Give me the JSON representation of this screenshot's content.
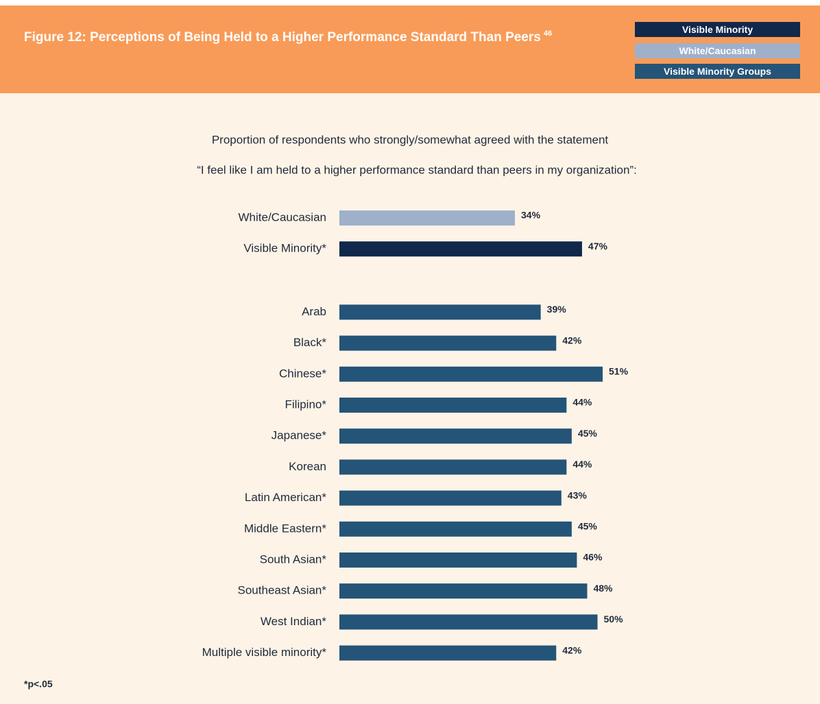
{
  "chart_data": {
    "type": "barh",
    "title": "Figure 12:  Perceptions of Being Held to a Higher Performance Standard Than Peers",
    "title_note": "46",
    "subtitle": [
      "Proportion of respondents who strongly/somewhat agreed with the statement",
      "“I feel like I am held to a higher performance standard than peers in my organization”:"
    ],
    "footnote": "*p<.05",
    "series": [
      {
        "name": "Visible Minority",
        "color": "#10284b",
        "categories": [
          "Visible Minority*"
        ],
        "values": [
          47
        ],
        "value_labels": [
          "47%"
        ]
      },
      {
        "name": "White/Caucasian",
        "color": "#9fb0cb",
        "categories": [
          "White/Caucasian"
        ],
        "values": [
          34
        ],
        "value_labels": [
          "34%"
        ]
      },
      {
        "name": "Visible Minority Groups",
        "color": "#245478",
        "categories": [
          "Arab",
          "Black*",
          "Chinese*",
          "Filipino*",
          "Japanese*",
          "Korean",
          "Latin American*",
          "Middle Eastern*",
          "South Asian*",
          "Southeast Asian*",
          "West Indian*",
          "Multiple visible minority*"
        ],
        "values": [
          39,
          42,
          51,
          44,
          45,
          44,
          43,
          45,
          46,
          48,
          50,
          42
        ],
        "value_labels": [
          "39%",
          "42%",
          "51%",
          "44%",
          "45%",
          "44%",
          "43%",
          "45%",
          "46%",
          "48%",
          "50%",
          "42%"
        ]
      }
    ]
  }
}
